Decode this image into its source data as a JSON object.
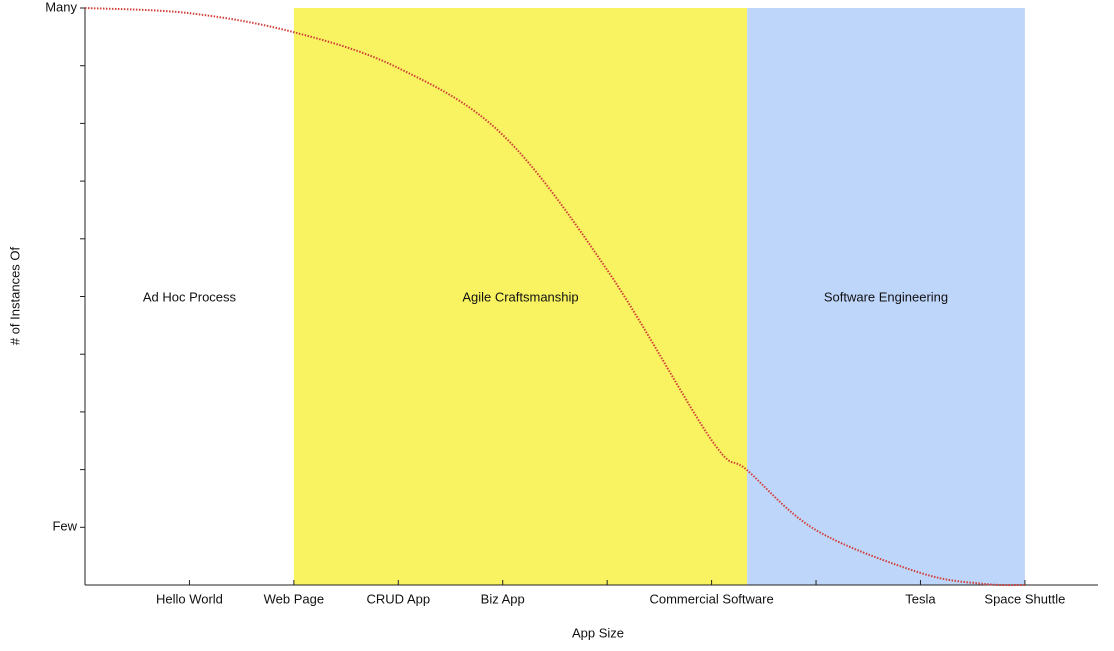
{
  "chart_data": {
    "type": "line",
    "x_label": "App Size",
    "y_label": "# of Instances Of",
    "xlim": [
      0,
      9.7
    ],
    "ylim": [
      0,
      10
    ],
    "xticks": [
      {
        "value": 1,
        "label": "Hello World"
      },
      {
        "value": 2,
        "label": "Web Page"
      },
      {
        "value": 3,
        "label": "CRUD App"
      },
      {
        "value": 4,
        "label": "Biz App"
      },
      {
        "value": 5,
        "label": null
      },
      {
        "value": 6,
        "label": "Commercial Software"
      },
      {
        "value": 7,
        "label": null
      },
      {
        "value": 8,
        "label": "Tesla"
      },
      {
        "value": 9,
        "label": "Space Shuttle"
      }
    ],
    "yticks": [
      {
        "value": 1,
        "label": "Few"
      },
      {
        "value": 2,
        "label": null
      },
      {
        "value": 3,
        "label": null
      },
      {
        "value": 4,
        "label": null
      },
      {
        "value": 5,
        "label": null
      },
      {
        "value": 6,
        "label": null
      },
      {
        "value": 7,
        "label": null
      },
      {
        "value": 8,
        "label": null
      },
      {
        "value": 9,
        "label": null
      },
      {
        "value": 10,
        "label": "Many"
      }
    ],
    "regions": [
      {
        "label": "Ad Hoc Process",
        "start": 0,
        "end": 2,
        "color": "#ffffff"
      },
      {
        "label": "Agile Craftsmanship",
        "start": 2,
        "end": 6.34,
        "color": "#f9f361"
      },
      {
        "label": "Software Engineering",
        "start": 6.34,
        "end": 9,
        "color": "#bfd6fb"
      }
    ],
    "series": [
      {
        "color": "#d0403a",
        "x": [
          0,
          1,
          2,
          3,
          4,
          5,
          6,
          6.34,
          7,
          8,
          8.6,
          9
        ],
        "values": [
          10,
          9.91,
          9.58,
          8.96,
          7.8,
          5.46,
          2.51,
          1.99,
          0.95,
          0.21,
          0.02,
          0
        ]
      }
    ]
  }
}
